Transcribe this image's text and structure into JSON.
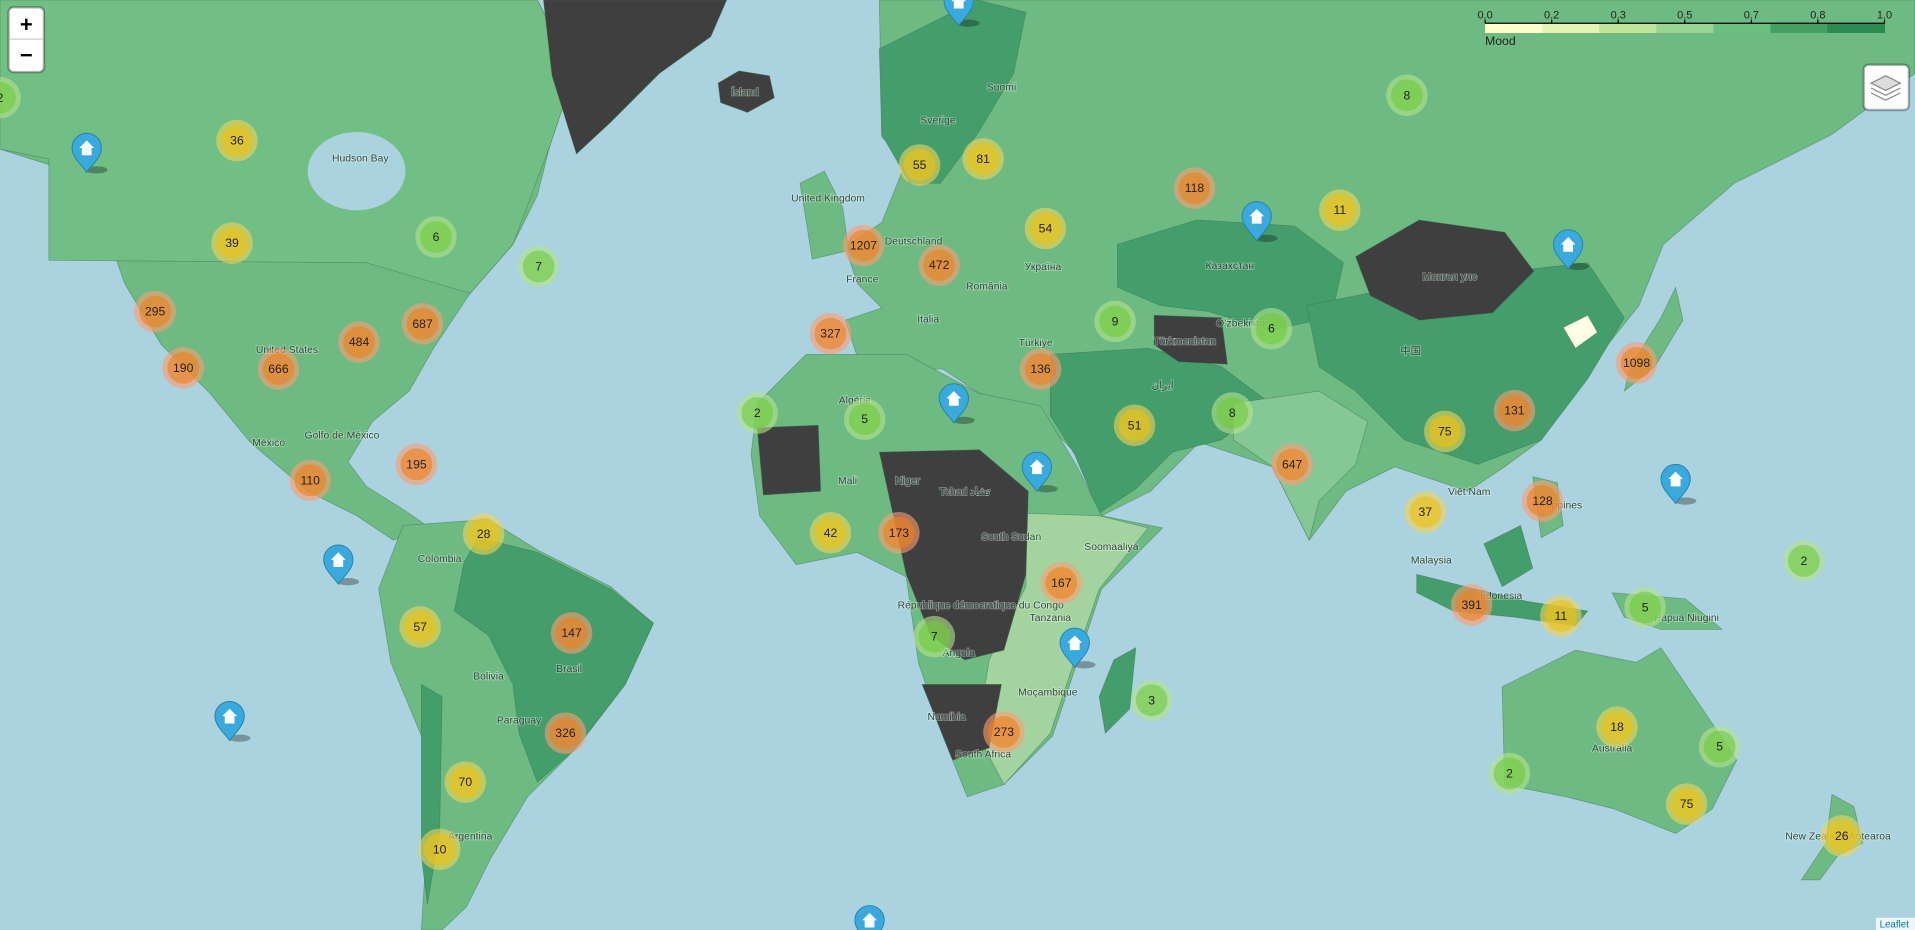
{
  "controls": {
    "zoom_in": "+",
    "zoom_out": "−"
  },
  "legend": {
    "title": "Mood",
    "ticks": [
      "0.0",
      "0.2",
      "0.3",
      "0.5",
      "0.7",
      "0.8",
      "1.0"
    ]
  },
  "clusters": [
    2,
    36,
    39,
    6,
    7,
    295,
    687,
    484,
    190,
    666,
    110,
    195,
    28,
    57,
    147,
    326,
    70,
    10,
    2,
    5,
    55,
    81,
    54,
    1207,
    472,
    327,
    9,
    136,
    51,
    42,
    173,
    167,
    7,
    273,
    3,
    118,
    8,
    11,
    6,
    8,
    647,
    75,
    131,
    1098,
    37,
    128,
    391,
    11,
    5,
    2,
    18,
    5,
    2,
    75,
    26
  ],
  "labels": [
    "Hudson Bay",
    "United States",
    "México",
    "Golfo de México",
    "Colombia",
    "Brasil",
    "Bolivia",
    "Paraguay",
    "Argentina",
    "Ísland",
    "Sverige",
    "Suomi",
    "United Kingdom",
    "Deutschland",
    "France",
    "Italia",
    "România",
    "Україна",
    "Türkiye",
    "Algérie",
    "Mali",
    "Niger",
    "Tchad تشاد",
    "South Sudan",
    "République démocratique du Congo",
    "Angola",
    "Tanzania",
    "Moçambique",
    "Namibia",
    "South Africa",
    "Soomaaliya",
    "Казахстан",
    "Монгол улс",
    "中国",
    "Türkmenistan",
    "Oʻzbekiston",
    "ایران",
    "Malaysia",
    "Indonesia",
    "Việt Nam",
    "Philippines",
    "Papua Niugini",
    "Australia",
    "New Zealand Aotearoa"
  ],
  "attribution": "Leaflet"
}
